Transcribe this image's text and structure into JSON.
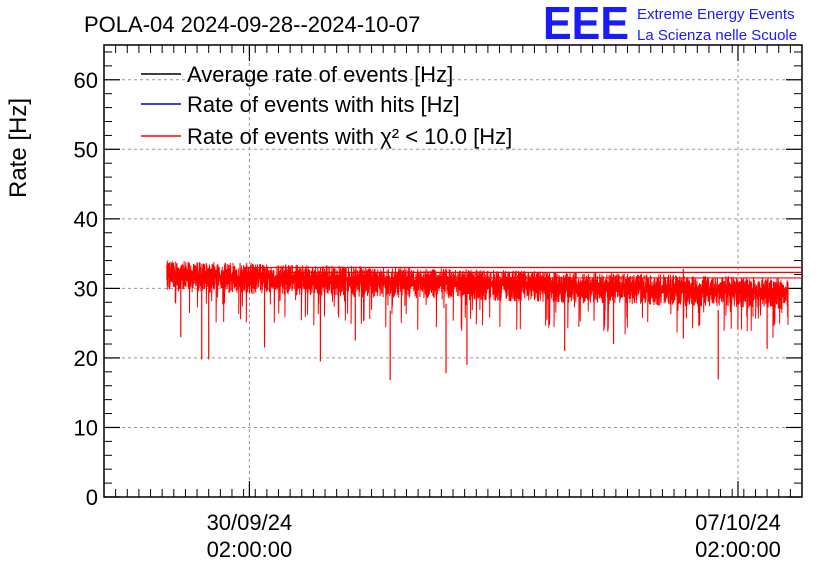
{
  "chart_data": {
    "type": "line",
    "title": "POLA-04 2024-09-28--2024-10-07",
    "ylabel": "Rate [Hz]",
    "xlabel": "",
    "ylim": [
      0,
      65
    ],
    "yticks": [
      0,
      10,
      20,
      30,
      40,
      50,
      60
    ],
    "xlim_days_from_2024_09_28": [
      0,
      10.0
    ],
    "xticks": [
      {
        "pos_days": 2.083,
        "label_date": "30/09/24",
        "label_time": "02:00:00"
      },
      {
        "pos_days": 9.083,
        "label_date": "07/10/24",
        "label_time": "02:00:00"
      }
    ],
    "grid": true,
    "legend_position": "top-left",
    "series": [
      {
        "name": "Average rate of events [Hz]",
        "color": "#000000",
        "mean": 31.0
      },
      {
        "name": "Rate of events with hits [Hz]",
        "color": "#0000cc",
        "mean": 31.0
      },
      {
        "name": "Rate of events with χ² < 10.0 [Hz]",
        "color": "#ff0000",
        "mean": 30.5
      }
    ],
    "red_series": {
      "x_start_days": 0.9,
      "x_end_days": 9.8,
      "mean_start": 32.0,
      "mean_end": 29.5,
      "band_high": 2.0,
      "band_low": 2.5,
      "dips": [
        {
          "x": 1.4,
          "y": 19.8
        },
        {
          "x": 1.5,
          "y": 19.8
        },
        {
          "x": 1.1,
          "y": 23.0
        },
        {
          "x": 2.3,
          "y": 21.5
        },
        {
          "x": 3.1,
          "y": 19.5
        },
        {
          "x": 4.1,
          "y": 16.8
        },
        {
          "x": 4.9,
          "y": 17.8
        },
        {
          "x": 5.2,
          "y": 19.0
        },
        {
          "x": 6.6,
          "y": 21.0
        },
        {
          "x": 8.8,
          "y": 16.9
        },
        {
          "x": 9.5,
          "y": 21.3
        },
        {
          "x": 3.6,
          "y": 22.5
        },
        {
          "x": 7.3,
          "y": 22.0
        },
        {
          "x": 8.3,
          "y": 22.8
        }
      ],
      "flat_lines": [
        {
          "x_from": 2.0,
          "y": 33.0
        },
        {
          "x_from": 2.6,
          "y": 32.3
        },
        {
          "x_from": 3.2,
          "y": 31.5
        }
      ]
    },
    "logo": {
      "main": "EEE",
      "line1": "Extreme Energy Events",
      "line2": "La Scienza nelle Scuole"
    }
  }
}
